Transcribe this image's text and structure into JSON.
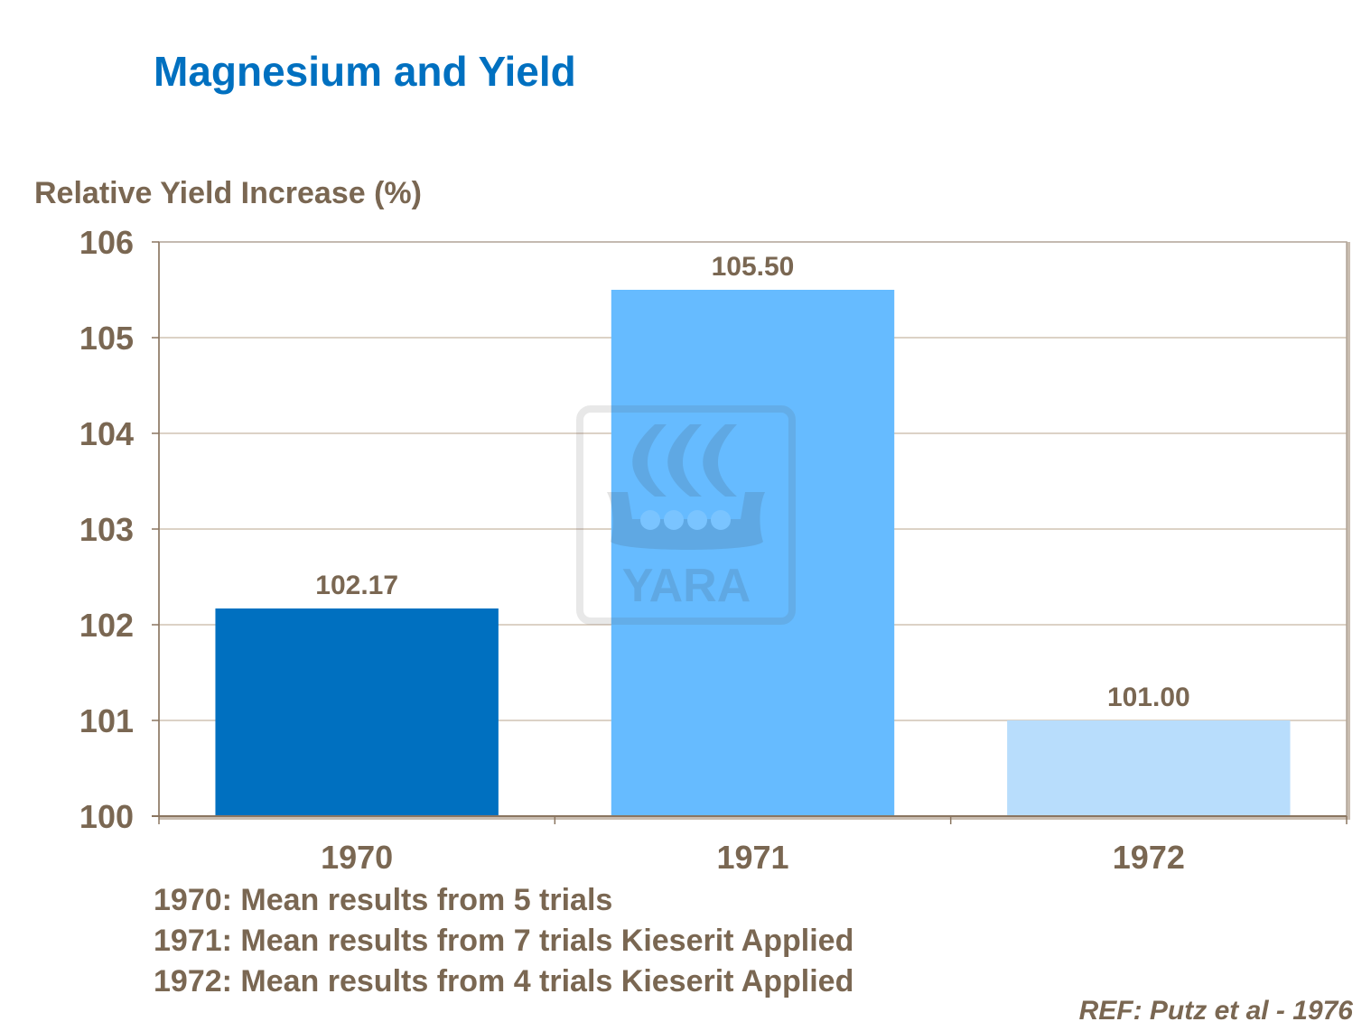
{
  "chart_data": {
    "type": "bar",
    "title": "Magnesium and Yield",
    "ylabel": "Relative Yield Increase (%)",
    "xlabel": "",
    "categories": [
      "1970",
      "1971",
      "1972"
    ],
    "values": [
      102.17,
      105.5,
      101.0
    ],
    "data_labels": [
      "102.17",
      "105.50",
      "101.00"
    ],
    "colors": [
      "#0070c0",
      "#66bbff",
      "#b8ddfc"
    ],
    "ylim": [
      100,
      106
    ],
    "yticks": [
      "100",
      "101",
      "102",
      "103",
      "104",
      "105",
      "106"
    ],
    "grid": true,
    "legend": "none"
  },
  "notes": [
    "1970: Mean results from 5 trials",
    "1971: Mean results from 7 trials Kieserit Applied",
    "1972: Mean results from 4 trials Kieserit Applied"
  ],
  "reference": "REF: Putz et al - 1976",
  "watermark": "YARA"
}
